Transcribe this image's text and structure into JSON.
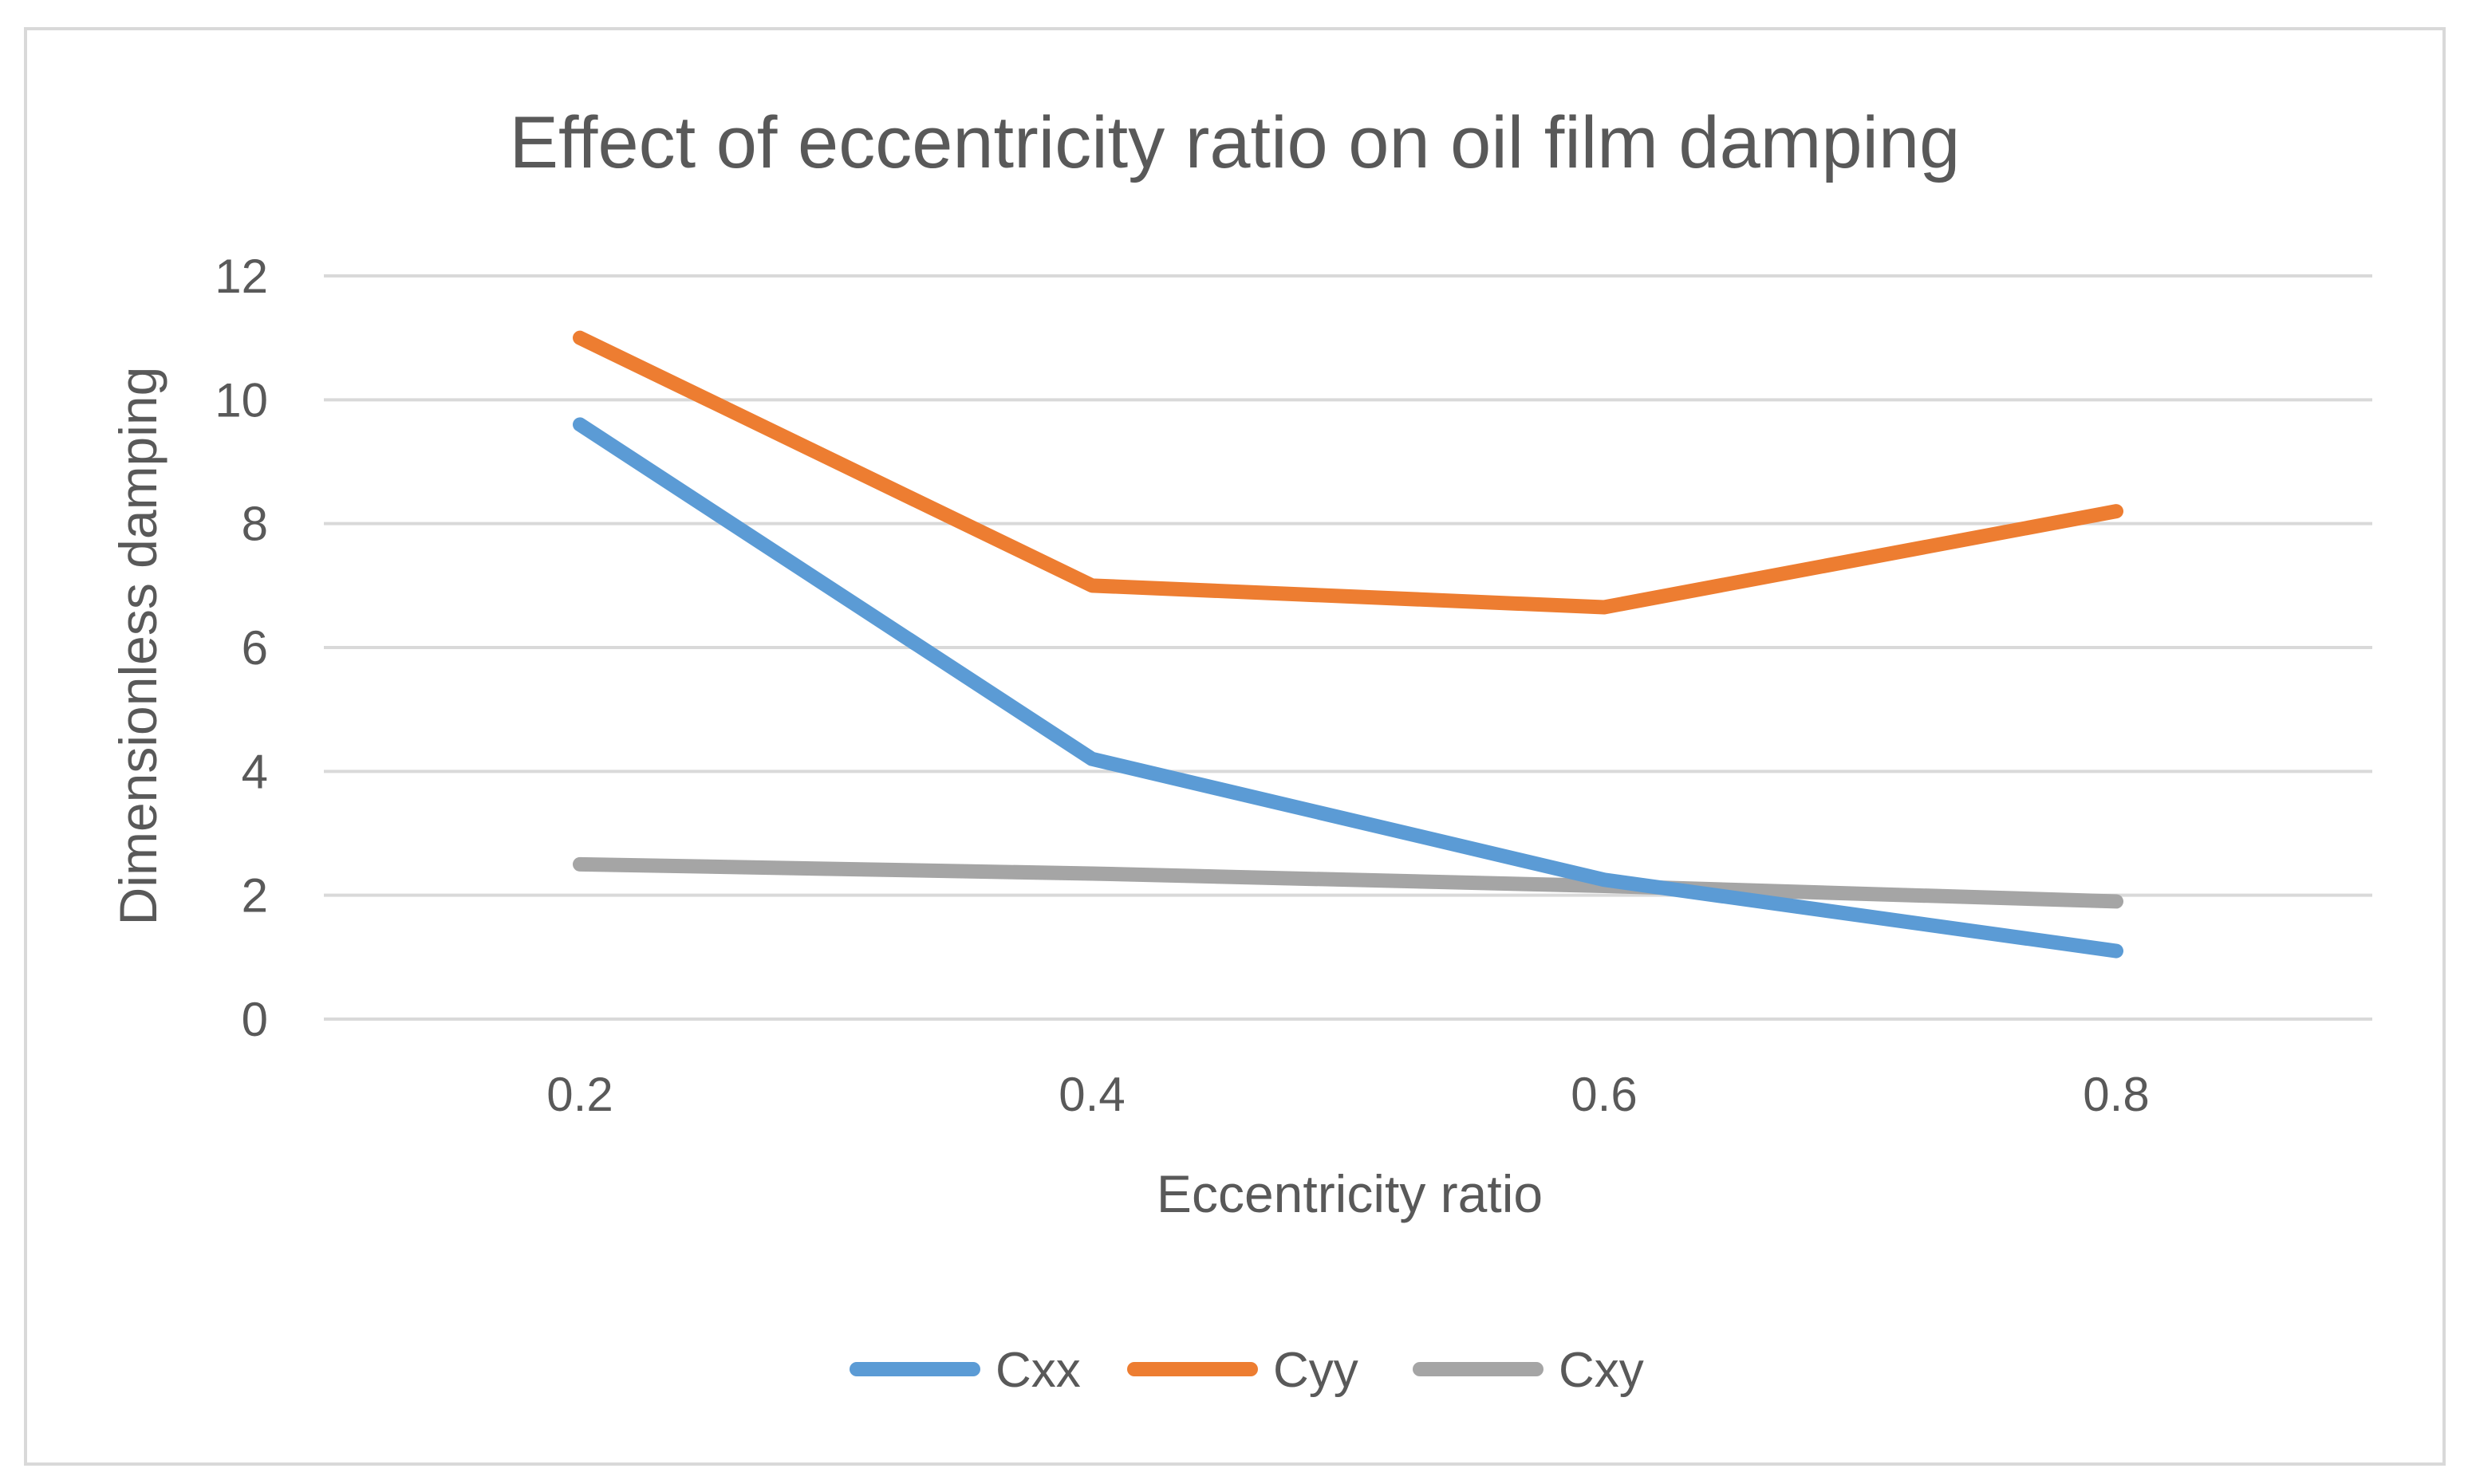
{
  "chart_data": {
    "type": "line",
    "title": "Effect of eccentricity ratio on oil film damping",
    "xlabel": "Eccentricity ratio",
    "ylabel": "Dimensionless damping",
    "x": [
      0.2,
      0.4,
      0.6,
      0.8
    ],
    "x_tick_labels": [
      "0.2",
      "0.4",
      "0.6",
      "0.8"
    ],
    "ylim": [
      0,
      12
    ],
    "y_ticks": [
      0,
      2,
      4,
      6,
      8,
      10,
      12
    ],
    "y_tick_labels": [
      "0",
      "2",
      "4",
      "6",
      "8",
      "10",
      "12"
    ],
    "grid": true,
    "legend_position": "bottom",
    "series": [
      {
        "name": "Cxx",
        "color": "#5b9bd5",
        "values": [
          9.6,
          4.2,
          2.25,
          1.1
        ]
      },
      {
        "name": "Cyy",
        "color": "#ed7d31",
        "values": [
          11.0,
          7.0,
          6.65,
          8.2
        ]
      },
      {
        "name": "Cxy",
        "color": "#a5a5a5",
        "values": [
          2.5,
          2.35,
          2.15,
          1.9
        ]
      }
    ]
  }
}
